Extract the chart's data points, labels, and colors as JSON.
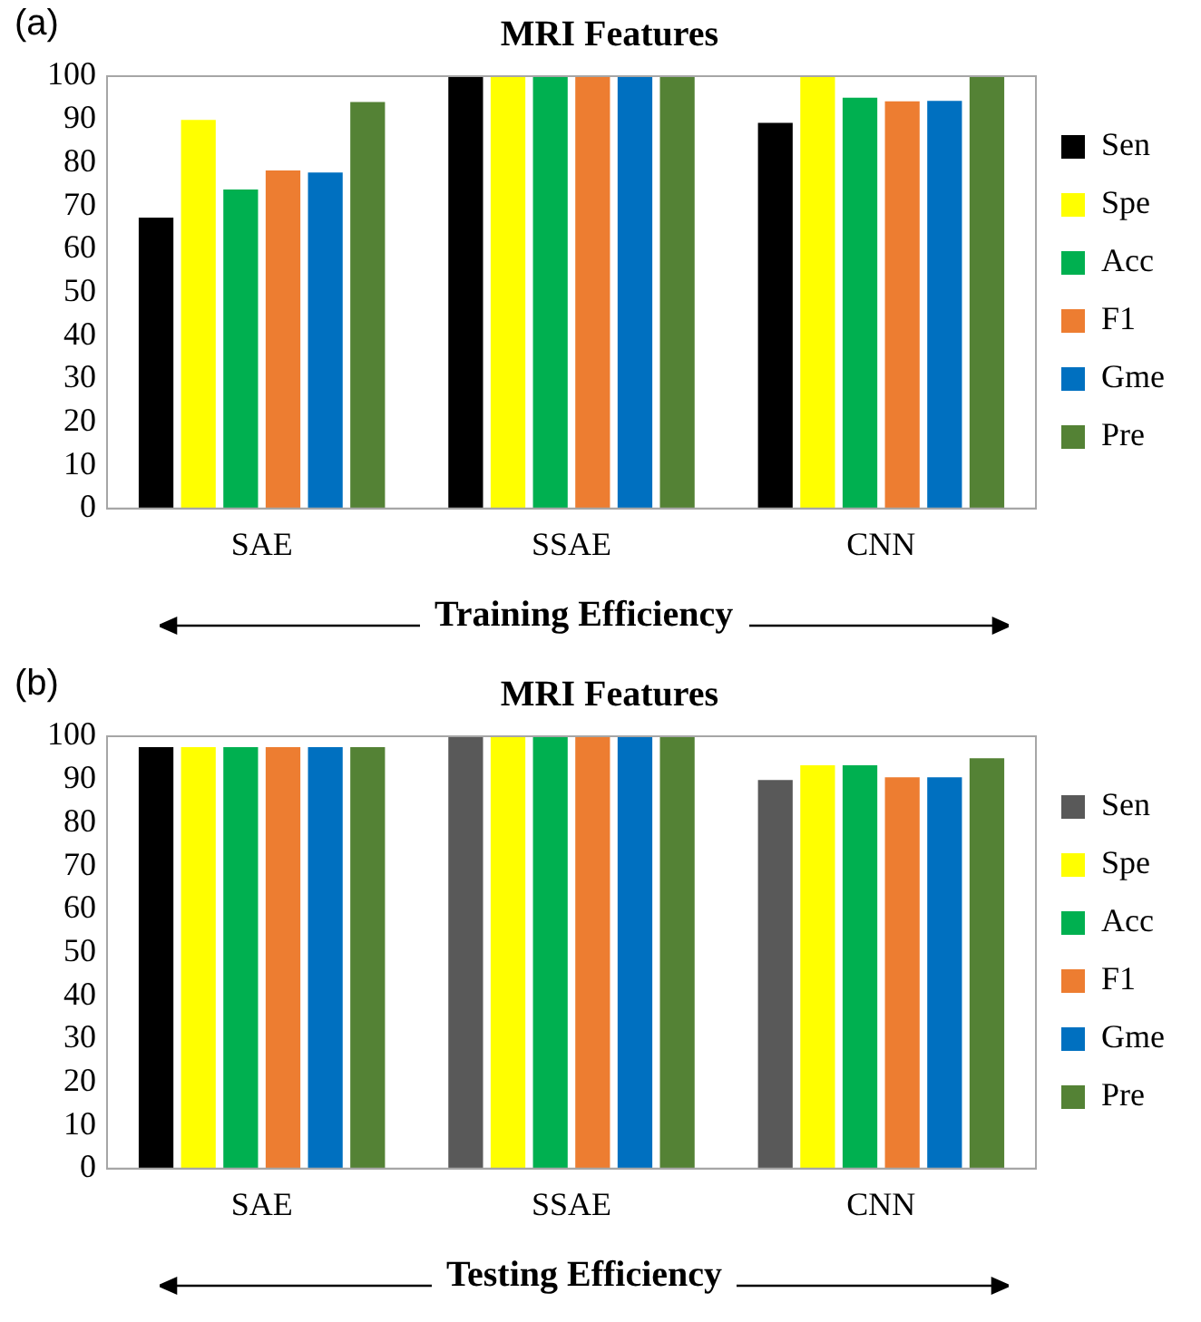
{
  "chart_data": [
    {
      "type": "bar",
      "title": "MRI Features",
      "xlabel": "Training Efficiency",
      "annotations": [
        "(a)"
      ],
      "categories": [
        "SAE",
        "SSAE",
        "CNN"
      ],
      "series": [
        {
          "name": "Sen",
          "color": "#000000",
          "values": [
            67.3,
            100,
            89.2
          ]
        },
        {
          "name": "Spe",
          "color": "#ffff00",
          "values": [
            89.9,
            100,
            100
          ]
        },
        {
          "name": "Acc",
          "color": "#00b050",
          "values": [
            73.8,
            100,
            95.0
          ]
        },
        {
          "name": "F1",
          "color": "#ed7d31",
          "values": [
            78.2,
            100,
            94.2
          ]
        },
        {
          "name": "Gme",
          "color": "#0070c0",
          "values": [
            77.7,
            100,
            94.3
          ]
        },
        {
          "name": "Pre",
          "color": "#548235",
          "values": [
            94.0,
            100,
            100
          ]
        }
      ],
      "ylim": [
        0,
        100
      ],
      "yticks": [
        0,
        10,
        20,
        30,
        40,
        50,
        60,
        70,
        80,
        90,
        100
      ],
      "grid": false,
      "legend": "right"
    },
    {
      "type": "bar",
      "title": "MRI Features",
      "xlabel": "Testing Efficiency",
      "annotations": [
        "(b)"
      ],
      "categories": [
        "SAE",
        "SSAE",
        "CNN"
      ],
      "series": [
        {
          "name": "Sen",
          "color": "#595959",
          "colors": [
            "#000000",
            "#595959",
            "#595959"
          ],
          "values": [
            97.5,
            100,
            89.9
          ]
        },
        {
          "name": "Spe",
          "color": "#ffff00",
          "values": [
            97.5,
            100,
            93.3
          ]
        },
        {
          "name": "Acc",
          "color": "#00b050",
          "values": [
            97.5,
            100,
            93.3
          ]
        },
        {
          "name": "F1",
          "color": "#ed7d31",
          "values": [
            97.5,
            100,
            90.5
          ]
        },
        {
          "name": "Gme",
          "color": "#0070c0",
          "values": [
            97.5,
            100,
            90.5
          ]
        },
        {
          "name": "Pre",
          "color": "#548235",
          "values": [
            97.5,
            100,
            94.9
          ]
        }
      ],
      "ylim": [
        0,
        100
      ],
      "yticks": [
        0,
        10,
        20,
        30,
        40,
        50,
        60,
        70,
        80,
        90,
        100
      ],
      "grid": false,
      "legend": "right"
    }
  ]
}
